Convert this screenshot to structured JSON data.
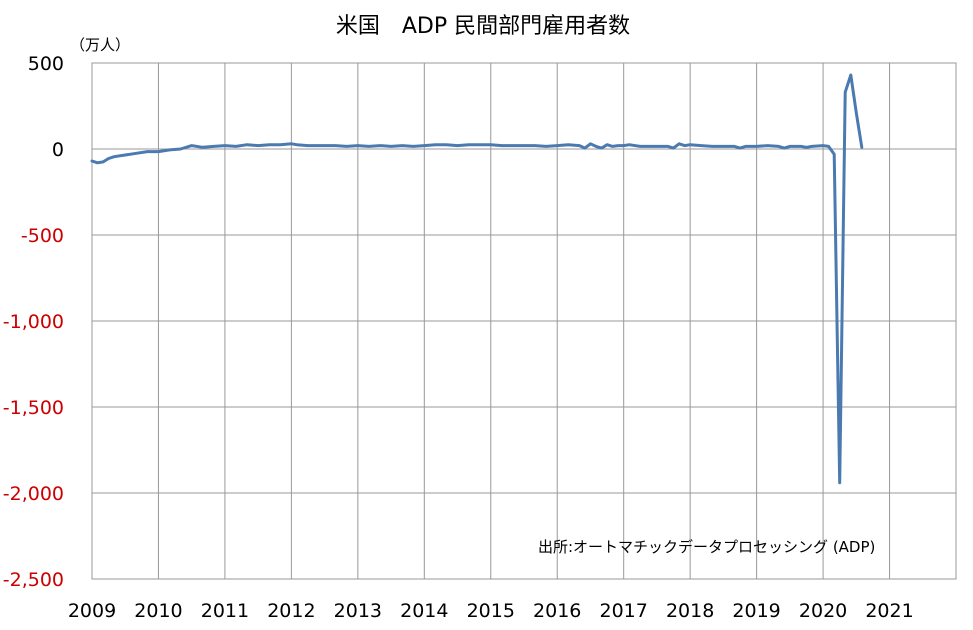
{
  "chart_data": {
    "type": "line",
    "title": "米国　ADP 民間部門雇用者数",
    "unit_label": "（万人）",
    "source": "出所:オートマチックデータプロセッシング (ADP)",
    "xlabel": "",
    "ylabel": "",
    "xlim": [
      2009,
      2022
    ],
    "ylim": [
      -2500,
      500
    ],
    "grid": true,
    "legend": "none",
    "x_ticks": [
      "2009",
      "2010",
      "2011",
      "2012",
      "2013",
      "2014",
      "2015",
      "2016",
      "2017",
      "2018",
      "2019",
      "2020",
      "2021"
    ],
    "y_ticks": [
      {
        "value": 500,
        "label": "500"
      },
      {
        "value": 0,
        "label": "0"
      },
      {
        "value": -500,
        "label": "-500"
      },
      {
        "value": -1000,
        "label": "-1,000"
      },
      {
        "value": -1500,
        "label": "-1,500"
      },
      {
        "value": -2000,
        "label": "-2,000"
      },
      {
        "value": -2500,
        "label": "-2,500"
      }
    ],
    "colors": {
      "line": "#4a7ab0",
      "negative_tick": "#cc0000",
      "positive_tick": "#000000",
      "grid": "#999999"
    },
    "series": [
      {
        "x": [
          2009.0,
          2009.083,
          2009.167,
          2009.25,
          2009.333,
          2009.5,
          2009.667,
          2009.833,
          2010.0,
          2010.167,
          2010.333,
          2010.5,
          2010.667,
          2010.833,
          2011.0,
          2011.167,
          2011.333,
          2011.5,
          2011.667,
          2011.833,
          2012.0,
          2012.083,
          2012.25,
          2012.5,
          2012.667,
          2012.833,
          2013.0,
          2013.167,
          2013.333,
          2013.5,
          2013.667,
          2013.833,
          2014.0,
          2014.167,
          2014.333,
          2014.5,
          2014.667,
          2014.833,
          2015.0,
          2015.167,
          2015.333,
          2015.5,
          2015.667,
          2015.833,
          2016.0,
          2016.167,
          2016.333,
          2016.417,
          2016.5,
          2016.583,
          2016.667,
          2016.75,
          2016.833,
          2016.917,
          2017.0,
          2017.083,
          2017.25,
          2017.5,
          2017.667,
          2017.75,
          2017.833,
          2017.917,
          2018.0,
          2018.167,
          2018.333,
          2018.5,
          2018.667,
          2018.75,
          2018.833,
          2019.0,
          2019.167,
          2019.333,
          2019.417,
          2019.5,
          2019.667,
          2019.75,
          2019.833,
          2020.0,
          2020.083,
          2020.167,
          2020.25,
          2020.333,
          2020.417,
          2020.5,
          2020.583
        ],
        "y": [
          -70,
          -80,
          -75,
          -55,
          -45,
          -35,
          -25,
          -15,
          -15,
          -5,
          0,
          20,
          10,
          15,
          20,
          15,
          25,
          20,
          25,
          25,
          30,
          25,
          20,
          20,
          20,
          15,
          20,
          15,
          20,
          15,
          20,
          15,
          20,
          25,
          25,
          20,
          25,
          25,
          25,
          20,
          20,
          20,
          20,
          15,
          20,
          25,
          20,
          5,
          30,
          15,
          5,
          25,
          15,
          20,
          20,
          25,
          15,
          15,
          15,
          5,
          30,
          20,
          25,
          20,
          15,
          15,
          15,
          5,
          15,
          15,
          20,
          15,
          5,
          15,
          15,
          10,
          15,
          20,
          15,
          -30,
          -1940,
          330,
          430,
          210,
          10
        ]
      }
    ]
  }
}
